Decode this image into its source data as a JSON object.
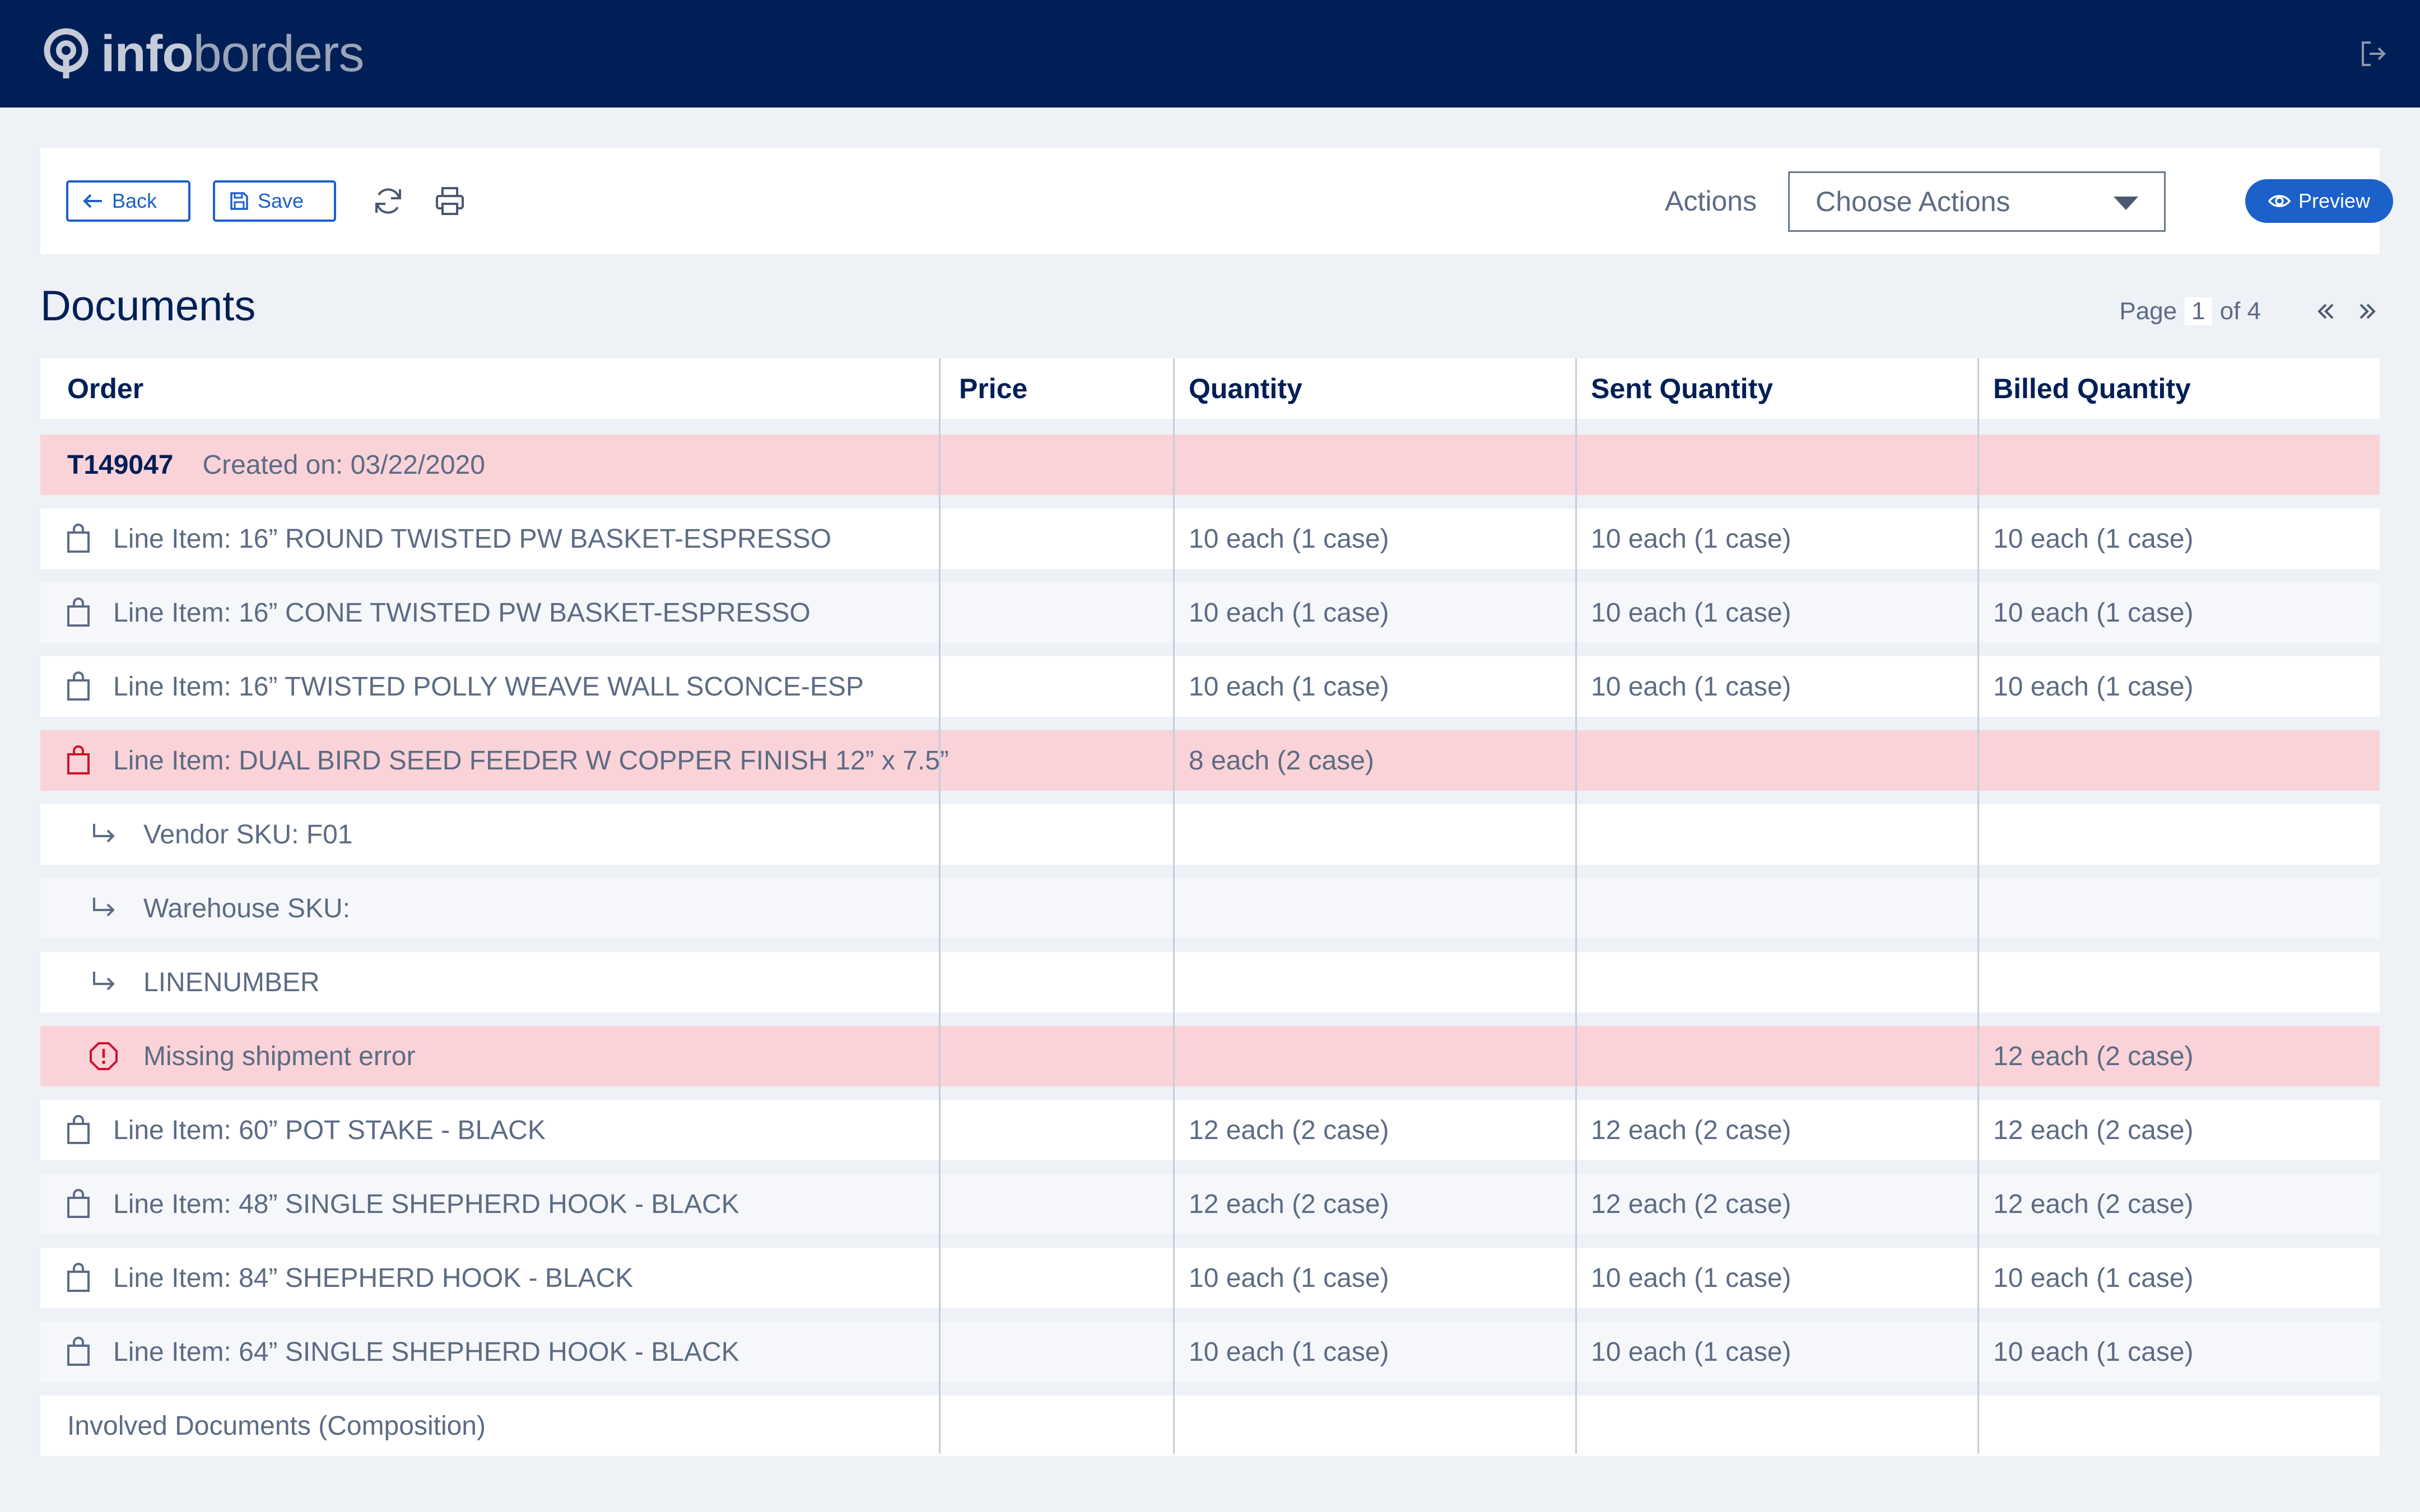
{
  "header": {
    "logo_bold": "info",
    "logo_light": "borders",
    "logout_icon": "logout-icon"
  },
  "toolbar": {
    "back_label": "Back",
    "save_label": "Save",
    "refresh_icon": "refresh-icon",
    "print_icon": "print-icon",
    "actions_label": "Actions",
    "actions_select_value": "Choose Actions",
    "preview_label": "Preview"
  },
  "page": {
    "title": "Documents",
    "pager_label": "Page",
    "pager_current": "1",
    "pager_of": "of 4"
  },
  "table": {
    "columns": [
      "Order",
      "Price",
      "Quantity",
      "Sent Quantity",
      "Billed Quantity"
    ],
    "order": {
      "id": "T149047",
      "created": "Created on: 03/22/2020"
    },
    "rows": [
      {
        "type": "item",
        "label": "Line Item:  16” ROUND TWISTED PW BASKET-ESPRESSO",
        "price": "",
        "qty": "10 each (1 case)",
        "sent": "10 each (1 case)",
        "billed": "10 each (1 case)"
      },
      {
        "type": "item",
        "label": "Line Item:  16” CONE TWISTED PW BASKET-ESPRESSO",
        "price": "",
        "qty": "10 each (1 case)",
        "sent": "10 each (1 case)",
        "billed": "10 each (1 case)"
      },
      {
        "type": "item",
        "label": "Line Item:  16” TWISTED POLLY WEAVE WALL SCONCE-ESP",
        "price": "",
        "qty": "10 each (1 case)",
        "sent": "10 each (1 case)",
        "billed": "10 each (1 case)"
      },
      {
        "type": "item-error",
        "label": "Line Item:  DUAL BIRD SEED FEEDER W COPPER FINISH 12” x 7.5”",
        "price": "",
        "qty": "8 each (2 case)",
        "sent": "",
        "billed": ""
      },
      {
        "type": "sub",
        "label": "Vendor SKU:   F01",
        "price": "",
        "qty": "",
        "sent": "",
        "billed": ""
      },
      {
        "type": "sub",
        "label": "Warehouse SKU:",
        "price": "",
        "qty": "",
        "sent": "",
        "billed": ""
      },
      {
        "type": "sub",
        "label": "LINENUMBER",
        "price": "",
        "qty": "",
        "sent": "",
        "billed": ""
      },
      {
        "type": "error",
        "label": "Missing shipment error",
        "price": "",
        "qty": "",
        "sent": "",
        "billed": "12 each (2 case)"
      },
      {
        "type": "item",
        "label": "Line Item:  60” POT STAKE - BLACK",
        "price": "",
        "qty": "12 each (2 case)",
        "sent": "12 each (2 case)",
        "billed": "12 each (2 case)"
      },
      {
        "type": "item",
        "label": "Line Item:  48” SINGLE SHEPHERD HOOK - BLACK",
        "price": "",
        "qty": "12 each (2 case)",
        "sent": "12 each (2 case)",
        "billed": "12 each (2 case)"
      },
      {
        "type": "item",
        "label": "Line Item:  84” SHEPHERD HOOK - BLACK",
        "price": "",
        "qty": "10 each (1 case)",
        "sent": "10 each (1 case)",
        "billed": "10 each (1 case)"
      },
      {
        "type": "item",
        "label": "Line Item:  64” SINGLE SHEPHERD HOOK - BLACK",
        "price": "",
        "qty": "10 each (1 case)",
        "sent": "10 each (1 case)",
        "billed": "10 each (1 case)"
      }
    ],
    "footer": "Involved Documents (Composition)"
  },
  "colors": {
    "header_bg": "#001f57",
    "accent": "#1b61c9",
    "error_bg": "#f9d3d8",
    "error_icon": "#d0122c"
  }
}
